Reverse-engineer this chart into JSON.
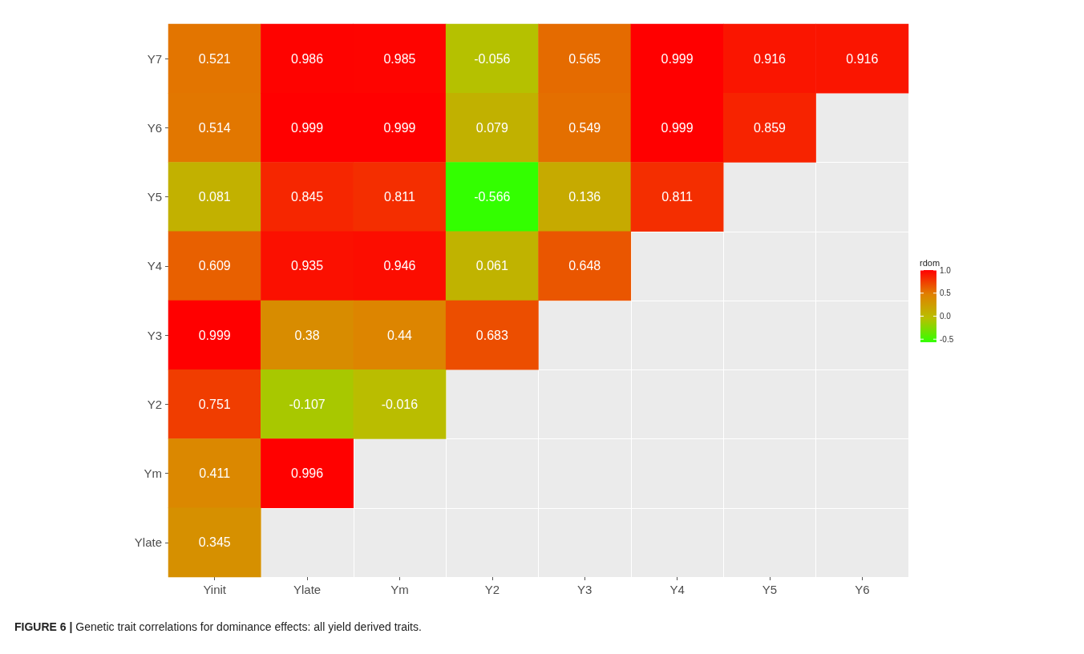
{
  "chart_data": {
    "type": "heatmap",
    "clabel": "rdom",
    "data_labels": true,
    "grid": true,
    "categories": [
      "Yinit",
      "Ylate",
      "Ym",
      "Y2",
      "Y3",
      "Y4",
      "Y5",
      "Y6"
    ],
    "y_categories": [
      "Y7",
      "Y6",
      "Y5",
      "Y4",
      "Y3",
      "Y2",
      "Ym",
      "Ylate"
    ],
    "cells": [
      [
        0.521,
        0.986,
        0.985,
        -0.056,
        0.565,
        0.999,
        0.916,
        0.916
      ],
      [
        0.514,
        0.999,
        0.999,
        0.079,
        0.549,
        0.999,
        0.859,
        null
      ],
      [
        0.081,
        0.845,
        0.811,
        -0.566,
        0.136,
        0.811,
        null,
        null
      ],
      [
        0.609,
        0.935,
        0.946,
        0.061,
        0.648,
        null,
        null,
        null
      ],
      [
        0.999,
        0.38,
        0.44,
        0.683,
        null,
        null,
        null,
        null
      ],
      [
        0.751,
        -0.107,
        -0.016,
        null,
        null,
        null,
        null,
        null
      ],
      [
        0.411,
        0.996,
        null,
        null,
        null,
        null,
        null,
        null
      ],
      [
        0.345,
        null,
        null,
        null,
        null,
        null,
        null,
        null
      ]
    ],
    "clim": [
      -0.566,
      1
    ],
    "cticks": [
      {
        "value": 1,
        "label": "1.0"
      },
      {
        "value": 0.5,
        "label": "0.5"
      },
      {
        "value": 0,
        "label": "0.0"
      },
      {
        "value": -0.5,
        "label": "-0.5"
      }
    ],
    "annotations": [
      "FIGURE 6 | Genetic trait correlations for dominance effects: all yield derived traits."
    ]
  }
}
